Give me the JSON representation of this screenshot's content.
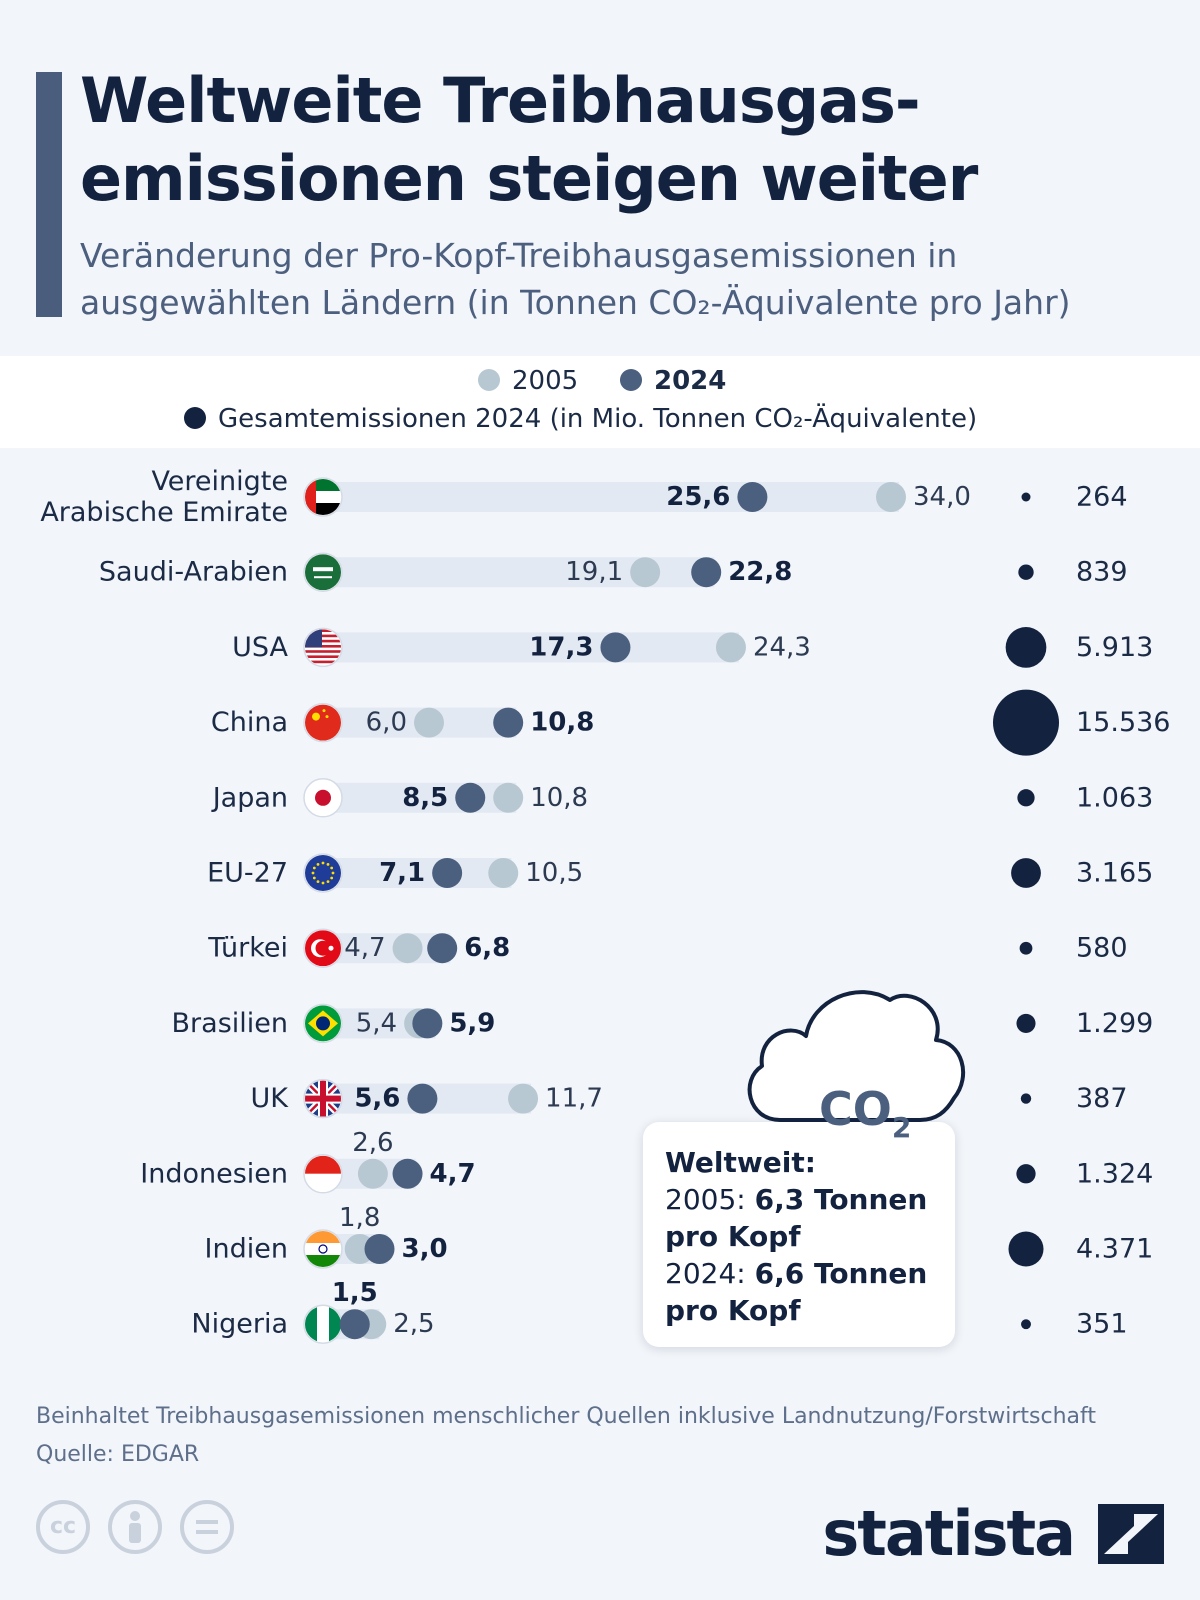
{
  "title": "Weltweite Treibhausgas-emissionen steigen weiter",
  "subtitle": "Veränderung der Pro-Kopf-Treibhausgasemissionen in ausgewählten Ländern (in Tonnen CO₂-Äquivalente pro Jahr)",
  "legend": {
    "y2005": "2005",
    "y2024": "2024",
    "total": "Gesamtemissionen 2024 (in Mio. Tonnen CO₂-Äquivalente)"
  },
  "colors": {
    "c2005": "#b8c8d2",
    "c2024": "#4b5f7e",
    "total": "#13223f",
    "track": "#e3e9f3"
  },
  "chart_data": {
    "type": "dot-plot",
    "title": "Weltweite Treibhausgas-emissionen steigen weiter",
    "unit": "Tonnen CO₂-Äquivalente pro Kopf",
    "series": [
      {
        "name": "2005",
        "values": [
          34.0,
          19.1,
          24.3,
          6.0,
          10.8,
          10.5,
          4.7,
          5.4,
          11.7,
          2.6,
          1.8,
          2.5
        ]
      },
      {
        "name": "2024",
        "values": [
          25.6,
          22.8,
          17.3,
          10.8,
          8.5,
          7.1,
          6.8,
          5.9,
          5.6,
          4.7,
          3.0,
          1.5
        ]
      },
      {
        "name": "Gesamtemissionen 2024 (in Mio. Tonnen CO₂-Äquivalente)",
        "values": [
          264,
          839,
          5913,
          15536,
          1063,
          3165,
          580,
          1299,
          387,
          1324,
          4371,
          351
        ]
      }
    ],
    "rows": [
      {
        "country": "Vereinigte Arabische Emirate",
        "flag": "uae-flag",
        "v2005": 34.0,
        "l2005": "34,0",
        "v2024": 25.6,
        "l2024": "25,6",
        "total": 264,
        "ltotal": "264"
      },
      {
        "country": "Saudi-Arabien",
        "flag": "saudi-flag",
        "v2005": 19.1,
        "l2005": "19,1",
        "v2024": 22.8,
        "l2024": "22,8",
        "total": 839,
        "ltotal": "839"
      },
      {
        "country": "USA",
        "flag": "usa-flag",
        "v2005": 24.3,
        "l2005": "24,3",
        "v2024": 17.3,
        "l2024": "17,3",
        "total": 5913,
        "ltotal": "5.913"
      },
      {
        "country": "China",
        "flag": "china-flag",
        "v2005": 6.0,
        "l2005": "6,0",
        "v2024": 10.8,
        "l2024": "10,8",
        "total": 15536,
        "ltotal": "15.536"
      },
      {
        "country": "Japan",
        "flag": "japan-flag",
        "v2005": 10.8,
        "l2005": "10,8",
        "v2024": 8.5,
        "l2024": "8,5",
        "total": 1063,
        "ltotal": "1.063"
      },
      {
        "country": "EU-27",
        "flag": "eu-flag",
        "v2005": 10.5,
        "l2005": "10,5",
        "v2024": 7.1,
        "l2024": "7,1",
        "total": 3165,
        "ltotal": "3.165"
      },
      {
        "country": "Türkei",
        "flag": "turkey-flag",
        "v2005": 4.7,
        "l2005": "4,7",
        "v2024": 6.8,
        "l2024": "6,8",
        "total": 580,
        "ltotal": "580"
      },
      {
        "country": "Brasilien",
        "flag": "brazil-flag",
        "v2005": 5.4,
        "l2005": "5,4",
        "v2024": 5.9,
        "l2024": "5,9",
        "total": 1299,
        "ltotal": "1.299"
      },
      {
        "country": "UK",
        "flag": "uk-flag",
        "v2005": 11.7,
        "l2005": "11,7",
        "v2024": 5.6,
        "l2024": "5,6",
        "total": 387,
        "ltotal": "387"
      },
      {
        "country": "Indonesien",
        "flag": "indonesia-flag",
        "v2005": 2.6,
        "l2005": "2,6",
        "v2024": 4.7,
        "l2024": "4,7",
        "total": 1324,
        "ltotal": "1.324"
      },
      {
        "country": "Indien",
        "flag": "india-flag",
        "v2005": 1.8,
        "l2005": "1,8",
        "v2024": 3.0,
        "l2024": "3,0",
        "total": 4371,
        "ltotal": "4.371"
      },
      {
        "country": "Nigeria",
        "flag": "nigeria-flag",
        "v2005": 2.5,
        "l2005": "2,5",
        "v2024": 1.5,
        "l2024": "1,5",
        "total": 351,
        "ltotal": "351"
      }
    ]
  },
  "note": {
    "co2_label": "CO",
    "co2_sub": "2",
    "heading": "Weltweit:",
    "line1_prefix": "2005: ",
    "line1_value": "6,3 Tonnen",
    "line1_tail": "pro Kopf",
    "line2_prefix": "2024: ",
    "line2_value": "6,6 Tonnen",
    "line2_tail": "pro Kopf"
  },
  "footnote": {
    "text": "Beinhaltet Treibhausgasemissionen menschlicher Quellen inklusive Landnutzung/Forstwirtschaft",
    "source": "Quelle: EDGAR"
  },
  "footer": {
    "cc_icons": [
      "cc-icon",
      "by-icon",
      "nd-icon"
    ],
    "logo_text": "statista"
  }
}
